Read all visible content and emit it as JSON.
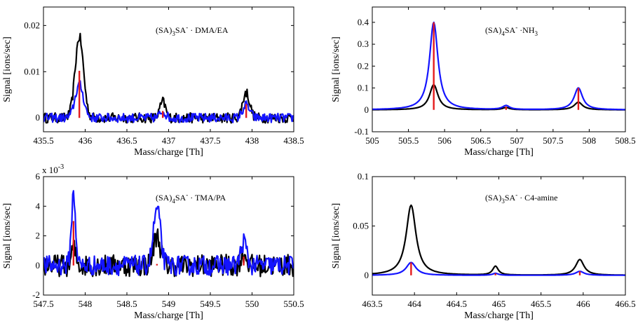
{
  "chart_data": [
    {
      "id": "p1",
      "type": "line",
      "xlabel": "Mass/charge [Th]",
      "ylabel": "Signal [ions/sec]",
      "xlim": [
        435.5,
        438.5
      ],
      "ylim": [
        -0.003,
        0.024
      ],
      "xticks": [
        "435.5",
        "436",
        "436.5",
        "437",
        "437.5",
        "438",
        "438.5"
      ],
      "yticks": [
        "0",
        "0.01",
        "0.02"
      ],
      "multiplier": "",
      "annotation": {
        "prefix": "(SA)",
        "sub": "3",
        "mid": "SA",
        "sup": "-",
        "rest": " · DMA/EA"
      },
      "peaks": [
        {
          "x": 435.93,
          "black": 0.0175,
          "blue": 0.0072,
          "red": 0.0102,
          "w": 0.06
        },
        {
          "x": 436.93,
          "black": 0.0035,
          "blue": 0.0015,
          "red": 0.0015,
          "w": 0.04
        },
        {
          "x": 437.93,
          "black": 0.0055,
          "blue": 0.0028,
          "red": 0.003,
          "w": 0.05
        }
      ],
      "noise": 0.0011,
      "series": [
        {
          "name": "black",
          "color": "#000000"
        },
        {
          "name": "blue",
          "color": "#1414ff"
        },
        {
          "name": "red",
          "color": "#e41a1c"
        }
      ]
    },
    {
      "id": "p2",
      "type": "line",
      "xlabel": "Mass/charge [Th]",
      "ylabel": "Signal [ions/sec]",
      "xlim": [
        505,
        508.5
      ],
      "ylim": [
        -0.1,
        0.47
      ],
      "xticks": [
        "505",
        "505.5",
        "506",
        "506.5",
        "507",
        "507.5",
        "508",
        "508.5"
      ],
      "yticks": [
        "-0.1",
        "0",
        "0.1",
        "0.2",
        "0.3",
        "0.4"
      ],
      "multiplier": "",
      "annotation": {
        "prefix": "(SA)",
        "sub": "4",
        "mid": "SA",
        "sup": "-",
        "rest": " ·NH",
        "sub2": "3"
      },
      "peaks": [
        {
          "x": 505.85,
          "black": 0.115,
          "blue": 0.4,
          "red": 0.4,
          "w": 0.07
        },
        {
          "x": 506.85,
          "black": 0.01,
          "blue": 0.018,
          "red": 0.015,
          "w": 0.06
        },
        {
          "x": 507.85,
          "black": 0.035,
          "blue": 0.1,
          "red": 0.1,
          "w": 0.07
        }
      ],
      "noise": 0,
      "series": [
        {
          "name": "black",
          "color": "#000000"
        },
        {
          "name": "blue",
          "color": "#1414ff"
        },
        {
          "name": "red",
          "color": "#e41a1c"
        }
      ]
    },
    {
      "id": "p3",
      "type": "line",
      "xlabel": "Mass/charge [Th]",
      "ylabel": "Signal [ions/sec]",
      "xlim": [
        547.5,
        550.5
      ],
      "ylim": [
        -2,
        6
      ],
      "xticks": [
        "547.5",
        "548",
        "548.5",
        "549",
        "549.5",
        "550",
        "550.5"
      ],
      "yticks": [
        "-2",
        "0",
        "2",
        "4",
        "6"
      ],
      "multiplier": "x 10",
      "multiplier_exp": "-3",
      "annotation": {
        "prefix": "(SA)",
        "sub": "4",
        "mid": "SA",
        "sup": "-",
        "rest": " · TMA/PA"
      },
      "peaks": [
        {
          "x": 547.86,
          "black": 1.2,
          "blue": 4.8,
          "red": 3.0,
          "w": 0.03
        },
        {
          "x": 548.86,
          "black": 2.0,
          "blue": 3.8,
          "red": 0.1,
          "w": 0.05
        },
        {
          "x": 549.9,
          "black": 0.8,
          "blue": 1.6,
          "red": 0.6,
          "w": 0.04
        }
      ],
      "noise": 0.75,
      "series": [
        {
          "name": "black",
          "color": "#000000"
        },
        {
          "name": "blue",
          "color": "#1414ff"
        },
        {
          "name": "red",
          "color": "#e41a1c"
        }
      ]
    },
    {
      "id": "p4",
      "type": "line",
      "xlabel": "Mass/charge [Th]",
      "ylabel": "Signal [ions/sec]",
      "xlim": [
        463.5,
        466.5
      ],
      "ylim": [
        -0.02,
        0.1
      ],
      "xticks": [
        "463.5",
        "464",
        "464.5",
        "465",
        "465.5",
        "466",
        "466.5"
      ],
      "yticks": [
        "0",
        "0.05",
        "0.1"
      ],
      "multiplier": "",
      "annotation": {
        "prefix": "(SA)",
        "sub": "3",
        "mid": "SA",
        "sup": "-",
        "rest": " · C4-amine"
      },
      "peaks": [
        {
          "x": 463.96,
          "black": 0.071,
          "blue": 0.013,
          "red": 0.013,
          "w": 0.07
        },
        {
          "x": 464.96,
          "black": 0.009,
          "blue": 0.002,
          "red": 0.002,
          "w": 0.04
        },
        {
          "x": 465.96,
          "black": 0.016,
          "blue": 0.004,
          "red": 0.004,
          "w": 0.06
        }
      ],
      "noise": 0,
      "series": [
        {
          "name": "black",
          "color": "#000000"
        },
        {
          "name": "blue",
          "color": "#1414ff"
        },
        {
          "name": "red",
          "color": "#e41a1c"
        }
      ]
    }
  ]
}
